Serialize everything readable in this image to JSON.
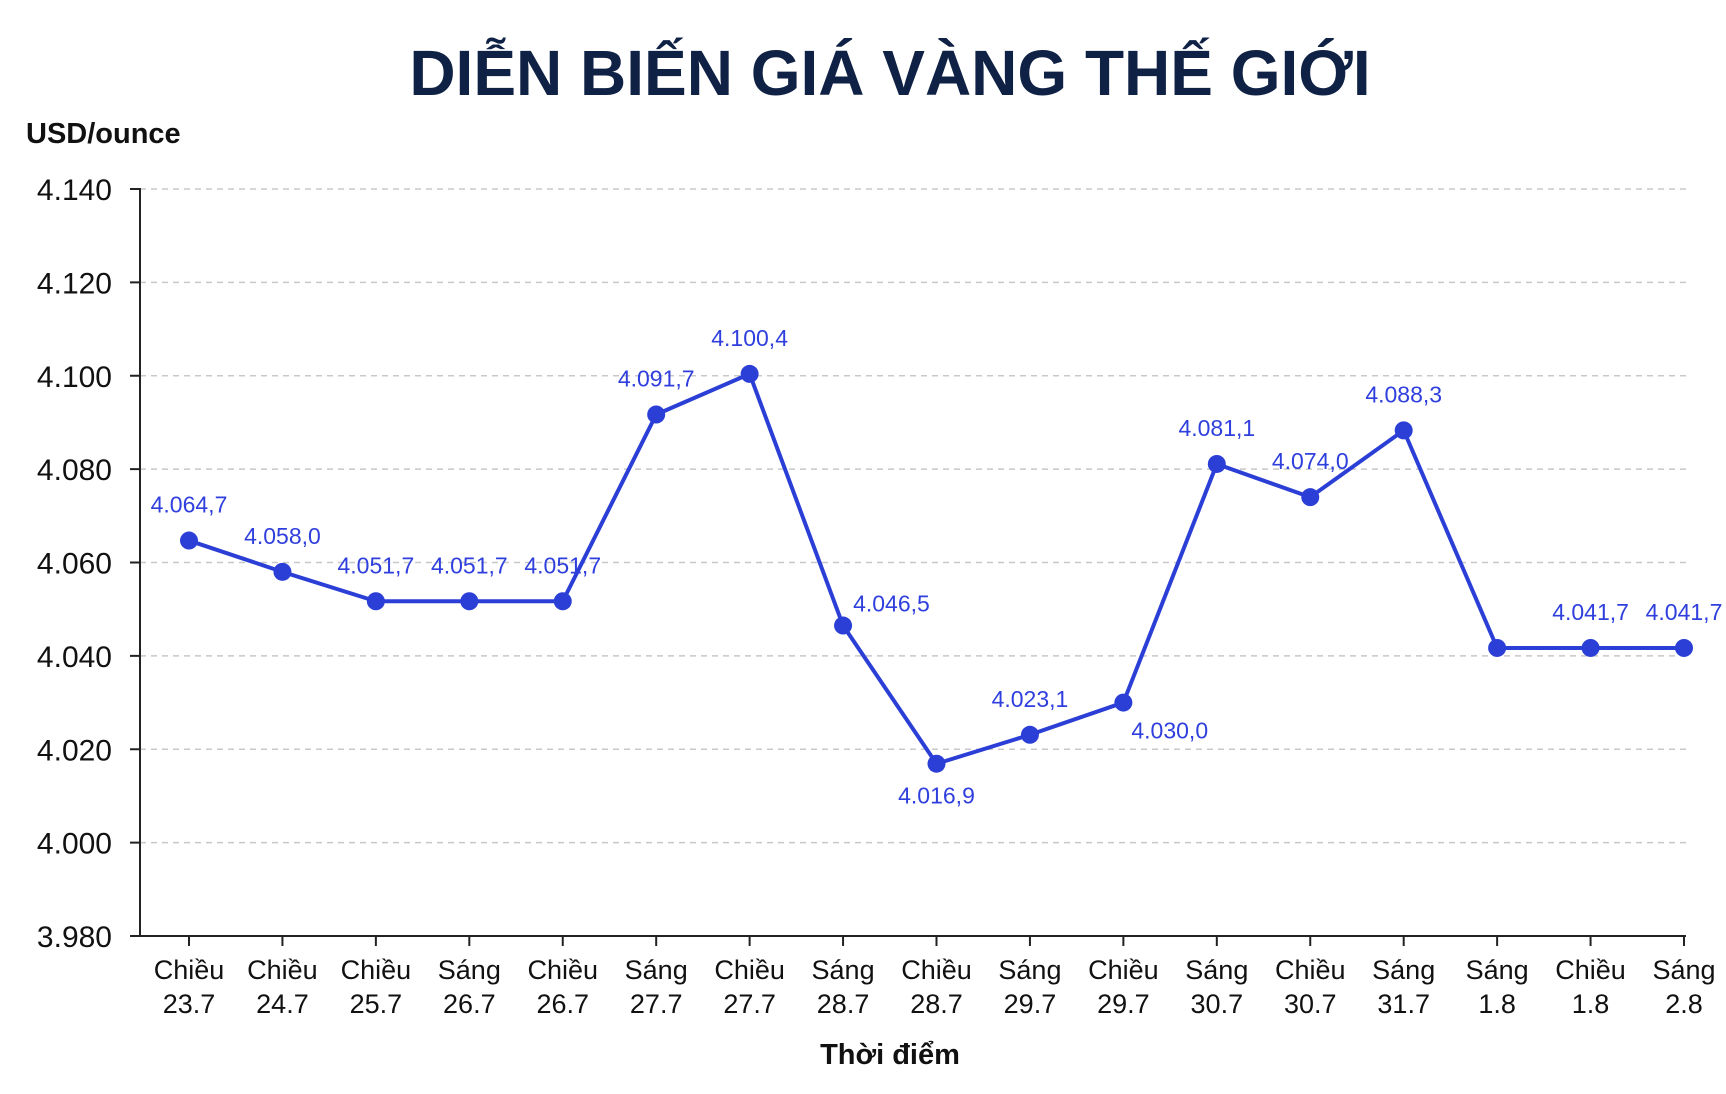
{
  "chart_data": {
    "type": "line",
    "title": "DIỄN BIẾN GIÁ VÀNG THẾ GIỚI",
    "ylabel": "USD/ounce",
    "xlabel": "Thời điểm",
    "ylim": [
      3980,
      4140
    ],
    "yticks": [
      3980,
      4000,
      4020,
      4040,
      4060,
      4080,
      4100,
      4120,
      4140
    ],
    "ytick_labels": [
      "3.980",
      "4.000",
      "4.020",
      "4.040",
      "4.060",
      "4.080",
      "4.100",
      "4.120",
      "4.140"
    ],
    "categories": [
      [
        "Chiều",
        "23.7"
      ],
      [
        "Chiều",
        "24.7"
      ],
      [
        "Chiều",
        "25.7"
      ],
      [
        "Sáng",
        "26.7"
      ],
      [
        "Chiều",
        "26.7"
      ],
      [
        "Sáng",
        "27.7"
      ],
      [
        "Chiều",
        "27.7"
      ],
      [
        "Sáng",
        "28.7"
      ],
      [
        "Chiều",
        "28.7"
      ],
      [
        "Sáng",
        "29.7"
      ],
      [
        "Chiều",
        "29.7"
      ],
      [
        "Sáng",
        "30.7"
      ],
      [
        "Chiều",
        "30.7"
      ],
      [
        "Sáng",
        "31.7"
      ],
      [
        "Sáng",
        "1.8"
      ],
      [
        "Chiều",
        "1.8"
      ],
      [
        "Sáng",
        "2.8"
      ]
    ],
    "series": [
      {
        "values": [
          4064.7,
          4058.0,
          4051.7,
          4051.7,
          4051.7,
          4091.7,
          4100.4,
          4046.5,
          4016.9,
          4023.1,
          4030.0,
          4081.1,
          4074.0,
          4088.3,
          4041.7,
          4041.7,
          4041.7
        ],
        "labels": [
          "4.064,7",
          "4.058,0",
          "4.051,7",
          "4.051,7",
          "4.051,7",
          "4.091,7",
          "4.100,4",
          "4.046,5",
          "4.016,9",
          "4.023,1",
          "4.030,0",
          "4.081,1",
          "4.074,0",
          "4.088,3",
          null,
          "4.041,7",
          "4.041,7"
        ],
        "label_position": [
          "above",
          "above",
          "above",
          "above",
          "above",
          "above",
          "above",
          "above-right",
          "below",
          "above",
          "below-right",
          "above",
          "above",
          "above",
          null,
          "above",
          "above"
        ],
        "color": "#2b3fd6"
      }
    ],
    "grid": true,
    "grid_style": "dashed",
    "legend": "none",
    "colors": {
      "title": "#0f2144",
      "line": "#2b3fd6",
      "data_label": "#2f3fdd",
      "grid": "#c8c8c8",
      "axis": "#222222"
    }
  }
}
